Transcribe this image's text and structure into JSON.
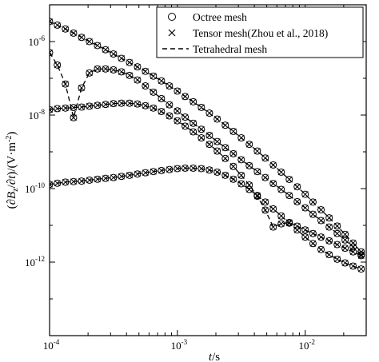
{
  "chart_data": {
    "type": "line",
    "xscale": "log",
    "yscale": "log",
    "xlim": [
      0.0001,
      0.03
    ],
    "ylim": [
      1e-14,
      1e-05
    ],
    "xlabel": {
      "var": "t",
      "unit": "/s"
    },
    "ylabel": {
      "text": "(∂B_z/∂t)/(V·m⁻²)"
    },
    "x_ticks": [
      {
        "value": 0.0001,
        "base": "10",
        "exp": "-4"
      },
      {
        "value": 0.001,
        "base": "10",
        "exp": "-3"
      },
      {
        "value": 0.01,
        "base": "10",
        "exp": "-2"
      }
    ],
    "y_ticks": [
      {
        "value": 1e-06,
        "base": "10",
        "exp": "-6"
      },
      {
        "value": 1e-08,
        "base": "10",
        "exp": "-8"
      },
      {
        "value": 1e-10,
        "base": "10",
        "exp": "-10"
      },
      {
        "value": 1e-12,
        "base": "10",
        "exp": "-12"
      }
    ],
    "grid": false,
    "legend_position": "top-right",
    "legend": [
      {
        "label": "Octree mesh",
        "marker": "circle",
        "line": "none"
      },
      {
        "label": "Tensor mesh(Zhou et al., 2018)",
        "marker": "x",
        "line": "none"
      },
      {
        "label": "Tetrahedral mesh",
        "marker": "none",
        "line": "dashed"
      }
    ],
    "x": [
      0.0001,
      0.000115,
      0.000133,
      0.000154,
      0.000178,
      0.000205,
      0.000237,
      0.000274,
      0.000316,
      0.000365,
      0.000422,
      0.000487,
      0.000562,
      0.000649,
      0.00075,
      0.000866,
      0.001,
      0.00115,
      0.00133,
      0.00154,
      0.00178,
      0.00205,
      0.00237,
      0.00274,
      0.00316,
      0.00365,
      0.00422,
      0.00487,
      0.00562,
      0.00649,
      0.0075,
      0.00866,
      0.01,
      0.0115,
      0.0133,
      0.0154,
      0.0178,
      0.0205,
      0.0237,
      0.0274
    ],
    "series": [
      {
        "values": [
          3.5e-06,
          2.8e-06,
          2.2e-06,
          1.7e-06,
          1.3e-06,
          1e-06,
          7.8e-07,
          6e-07,
          4.6e-07,
          3.5e-07,
          2.7e-07,
          2.05e-07,
          1.55e-07,
          1.15e-07,
          8.5e-08,
          6.2e-08,
          4.5e-08,
          3.2e-08,
          2.3e-08,
          1.62e-08,
          1.13e-08,
          7.8e-09,
          5.3e-09,
          3.6e-09,
          2.4e-09,
          1.6e-09,
          1.05e-09,
          6.8e-10,
          4.4e-10,
          2.8e-10,
          1.78e-10,
          1.12e-10,
          7e-11,
          4.3e-11,
          2.65e-11,
          1.6e-11,
          9.6e-12,
          5.7e-12,
          3.3e-12,
          1.9e-12
        ]
      },
      {
        "values": [
          5e-07,
          2.3e-07,
          7e-08,
          8.5e-09,
          5.5e-08,
          1.4e-07,
          1.8e-07,
          1.8e-07,
          1.7e-07,
          1.5e-07,
          1.2e-07,
          9e-08,
          6.2e-08,
          4.2e-08,
          2.8e-08,
          1.9e-08,
          1.3e-08,
          8.8e-09,
          6e-09,
          4.1e-09,
          2.8e-09,
          1.9e-09,
          1.3e-09,
          8.9e-10,
          6.1e-10,
          4.2e-10,
          2.9e-10,
          2e-10,
          1.38e-10,
          9.5e-11,
          6.5e-11,
          4.4e-11,
          3e-11,
          2e-11,
          1.35e-11,
          9e-12,
          6e-12,
          4e-12,
          2.6e-12,
          1.6e-12
        ]
      },
      {
        "values": [
          1.4e-08,
          1.5e-08,
          1.55e-08,
          1.6e-08,
          1.65e-08,
          1.75e-08,
          1.85e-08,
          1.95e-08,
          2.05e-08,
          2.1e-08,
          2.1e-08,
          2e-08,
          1.8e-08,
          1.55e-08,
          1.25e-08,
          9.5e-09,
          7e-09,
          5e-09,
          3.5e-09,
          2.4e-09,
          1.6e-09,
          1.05e-09,
          6.6e-10,
          4e-10,
          2.3e-10,
          1.25e-10,
          6.2e-11,
          2.6e-11,
          9e-12,
          1.1e-11,
          1.2e-11,
          9.5e-12,
          7.5e-12,
          6e-12,
          4.8e-12,
          3.8e-12,
          3e-12,
          2.4e-12,
          1.9e-12,
          1.5e-12
        ]
      },
      {
        "values": [
          1.3e-10,
          1.4e-10,
          1.5e-10,
          1.55e-10,
          1.6e-10,
          1.7e-10,
          1.8e-10,
          1.9e-10,
          2e-10,
          2.15e-10,
          2.3e-10,
          2.5e-10,
          2.7e-10,
          2.9e-10,
          3.1e-10,
          3.3e-10,
          3.5e-10,
          3.6e-10,
          3.6e-10,
          3.5e-10,
          3.2e-10,
          2.8e-10,
          2.3e-10,
          1.8e-10,
          1.35e-10,
          9.5e-11,
          6.5e-11,
          4.3e-11,
          2.8e-11,
          1.8e-11,
          1.15e-11,
          7.5e-12,
          4.8e-12,
          3.2e-12,
          2.2e-12,
          1.6e-12,
          1.2e-12,
          9.5e-13,
          7.8e-13,
          6.5e-13
        ]
      }
    ]
  }
}
